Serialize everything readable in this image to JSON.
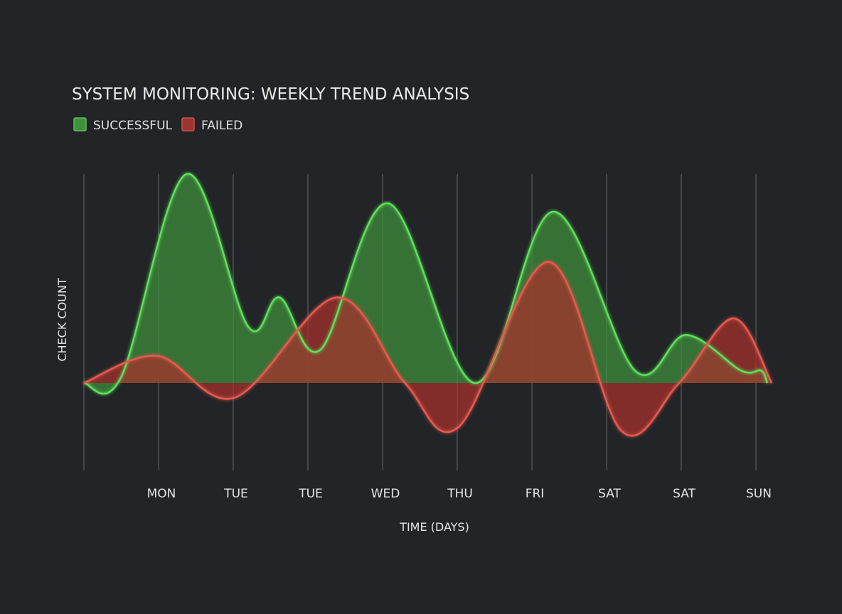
{
  "chart_data": {
    "type": "area",
    "title": "SYSTEM MONITORING: WEEKLY TREND ANALYSIS",
    "xlabel": "TIME (DAYS)",
    "ylabel": "CHECK COUNT",
    "categories": [
      "MON",
      "TUE",
      "TUE",
      "WED",
      "THU",
      "FRI",
      "SAT",
      "SAT",
      "SUN"
    ],
    "xlim": [
      0,
      9.2
    ],
    "ylim": [
      -30,
      100
    ],
    "grid": "vertical",
    "legend": "top-left",
    "series": [
      {
        "name": "SUCCESSFUL",
        "color": "#5ee05a",
        "fill": "#3f8f3c",
        "points": [
          [
            0,
            0
          ],
          [
            0.5,
            3
          ],
          [
            1.37,
            100
          ],
          [
            2.2,
            27
          ],
          [
            2.62,
            41
          ],
          [
            3.17,
            16
          ],
          [
            4.08,
            86
          ],
          [
            5.24,
            0
          ],
          [
            6.28,
            82
          ],
          [
            7.38,
            6
          ],
          [
            8.06,
            23
          ],
          [
            8.8,
            6
          ],
          [
            9.07,
            6
          ],
          [
            9.15,
            0
          ]
        ]
      },
      {
        "name": "FAILED",
        "color": "#e55a50",
        "fill": "#a8302c",
        "points": [
          [
            0,
            0
          ],
          [
            0.98,
            13
          ],
          [
            2.02,
            -7
          ],
          [
            3.38,
            41
          ],
          [
            4.3,
            0
          ],
          [
            5.02,
            -21
          ],
          [
            6.22,
            58
          ],
          [
            7.2,
            -23
          ],
          [
            7.97,
            0
          ],
          [
            8.7,
            31
          ],
          [
            9.21,
            0
          ]
        ]
      }
    ]
  }
}
